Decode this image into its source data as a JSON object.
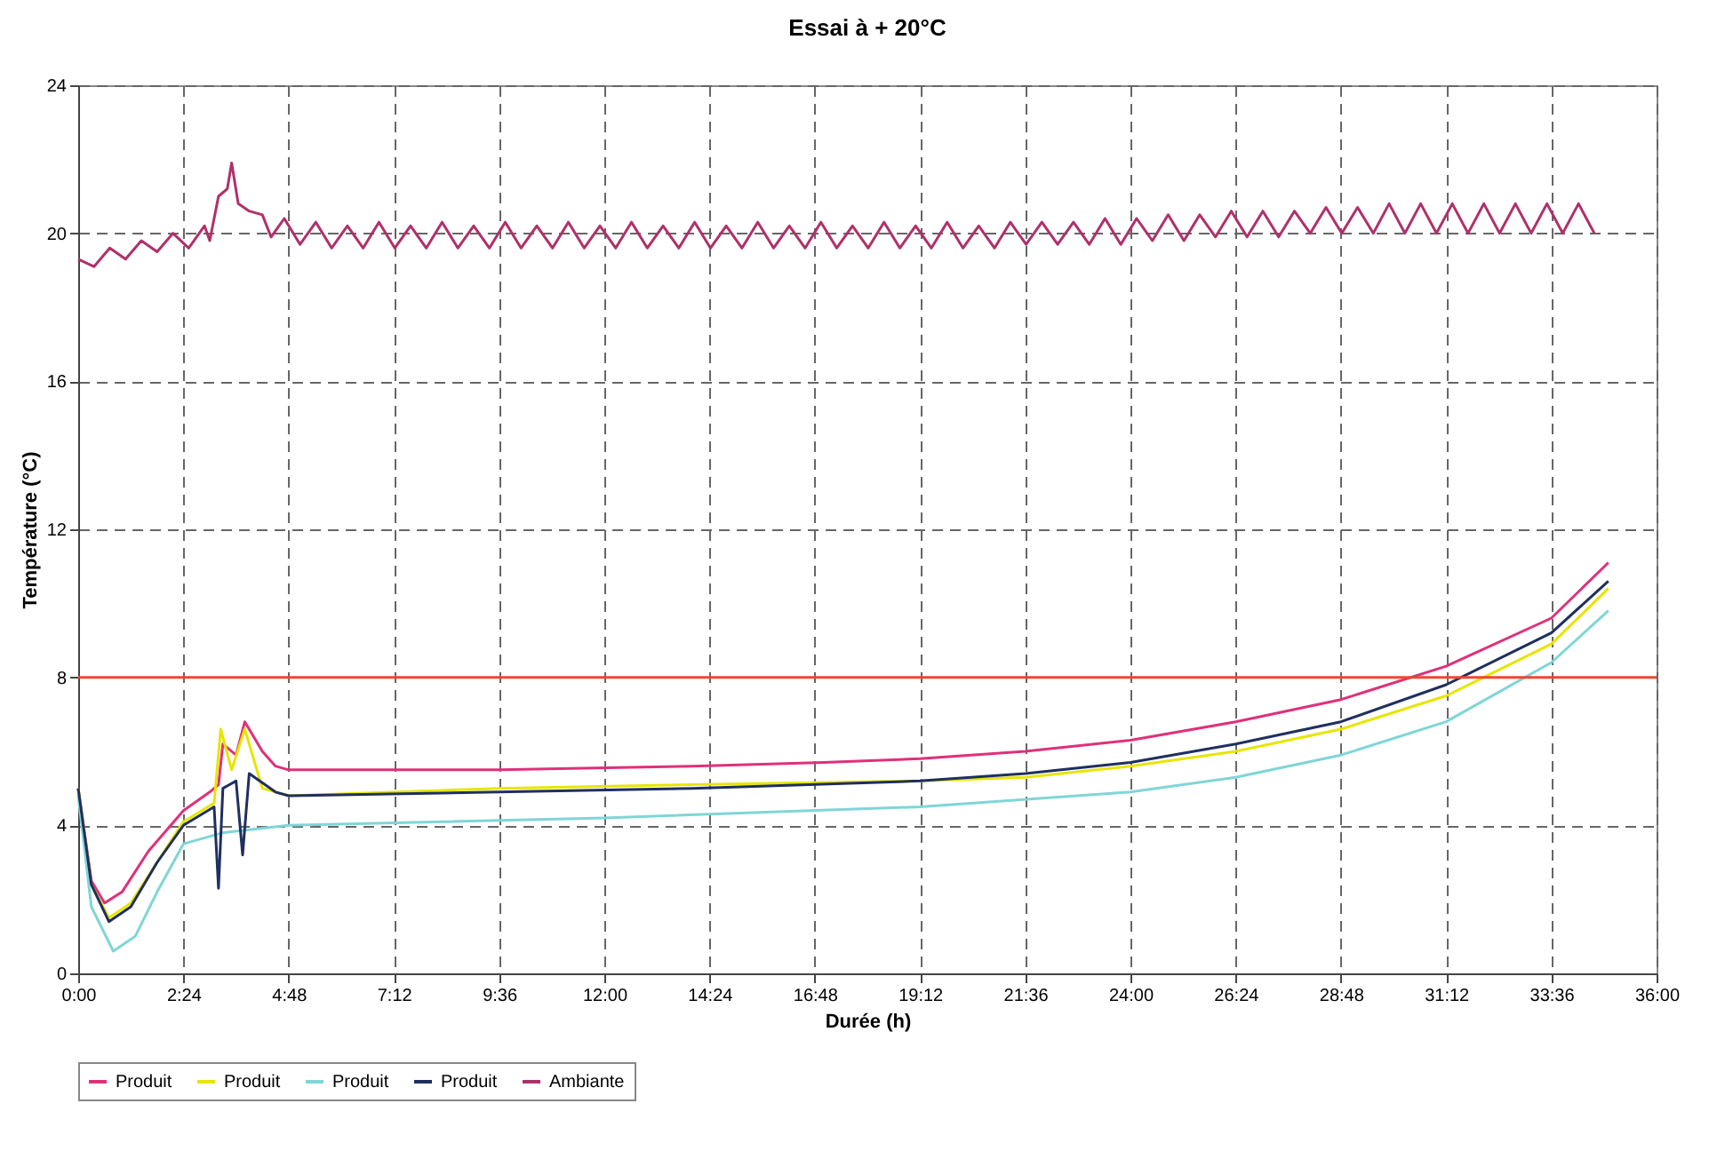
{
  "chart_data": {
    "type": "line",
    "title": "Essai à + 20°C",
    "xlabel": "Durée (h)",
    "ylabel": "Température (°C)",
    "xlim": [
      0,
      36
    ],
    "ylim": [
      0,
      24
    ],
    "xticks": [
      {
        "value": 0,
        "label": "0:00"
      },
      {
        "value": 2.4,
        "label": "2:24"
      },
      {
        "value": 4.8,
        "label": "4:48"
      },
      {
        "value": 7.2,
        "label": "7:12"
      },
      {
        "value": 9.6,
        "label": "9:36"
      },
      {
        "value": 12,
        "label": "12:00"
      },
      {
        "value": 14.4,
        "label": "14:24"
      },
      {
        "value": 16.8,
        "label": "16:48"
      },
      {
        "value": 19.2,
        "label": "19:12"
      },
      {
        "value": 21.6,
        "label": "21:36"
      },
      {
        "value": 24,
        "label": "24:00"
      },
      {
        "value": 26.4,
        "label": "26:24"
      },
      {
        "value": 28.8,
        "label": "28:48"
      },
      {
        "value": 31.2,
        "label": "31:12"
      },
      {
        "value": 33.6,
        "label": "33:36"
      },
      {
        "value": 36,
        "label": "36:00"
      }
    ],
    "yticks": [
      0,
      4,
      8,
      12,
      16,
      20,
      24
    ],
    "grid": true,
    "legend": "bottom",
    "line_style": "solid",
    "ref_lines": [
      {
        "axis": "y",
        "value": 8,
        "color": "#e84a30"
      }
    ],
    "series": [
      {
        "name": "Produit",
        "color": "#e0307a",
        "x": [
          0,
          0.3,
          0.6,
          1.0,
          1.6,
          2.4,
          3.0,
          3.2,
          3.3,
          3.6,
          3.8,
          4.2,
          4.5,
          4.8,
          9.6,
          14,
          17,
          19.2,
          21.6,
          24,
          26.4,
          28.8,
          31.2,
          33.6,
          34.9
        ],
        "values": [
          5.0,
          2.5,
          1.9,
          2.2,
          3.3,
          4.4,
          4.9,
          5.1,
          6.2,
          5.9,
          6.8,
          6.0,
          5.6,
          5.5,
          5.5,
          5.6,
          5.7,
          5.8,
          6.0,
          6.3,
          6.8,
          7.4,
          8.3,
          9.6,
          11.1
        ]
      },
      {
        "name": "Produit",
        "color": "#e6e600",
        "x": [
          0,
          0.3,
          0.7,
          1.2,
          1.8,
          2.4,
          3.1,
          3.25,
          3.5,
          3.8,
          4.2,
          4.8,
          9.6,
          14,
          19.2,
          21.6,
          24,
          26.4,
          28.8,
          31.2,
          33.6,
          34.9
        ],
        "values": [
          5.0,
          2.4,
          1.5,
          1.9,
          3.0,
          4.1,
          4.6,
          6.6,
          5.5,
          6.6,
          5.0,
          4.8,
          5.0,
          5.1,
          5.2,
          5.3,
          5.6,
          6.0,
          6.6,
          7.5,
          8.9,
          10.4
        ]
      },
      {
        "name": "Produit",
        "color": "#7fd6d6",
        "x": [
          0,
          0.3,
          0.8,
          1.3,
          1.8,
          2.4,
          3.3,
          4.8,
          12,
          19.2,
          24,
          26.4,
          28.8,
          31.2,
          33.6,
          34.9
        ],
        "values": [
          4.8,
          1.8,
          0.6,
          1.0,
          2.2,
          3.5,
          3.8,
          4.0,
          4.2,
          4.5,
          4.9,
          5.3,
          5.9,
          6.8,
          8.4,
          9.8
        ]
      },
      {
        "name": "Produit",
        "color": "#1f2f5f",
        "x": [
          0,
          0.3,
          0.7,
          1.2,
          1.8,
          2.4,
          3.1,
          3.2,
          3.3,
          3.6,
          3.75,
          3.9,
          4.5,
          4.8,
          9.6,
          14,
          19.2,
          21.6,
          24,
          26.4,
          28.8,
          31.2,
          33.6,
          34.9
        ],
        "values": [
          5.0,
          2.4,
          1.4,
          1.8,
          3.0,
          4.0,
          4.5,
          2.3,
          5.0,
          5.2,
          3.2,
          5.4,
          4.9,
          4.8,
          4.9,
          5.0,
          5.2,
          5.4,
          5.7,
          6.2,
          6.8,
          7.8,
          9.2,
          10.6
        ]
      },
      {
        "name": "Ambiante",
        "color": "#b0306a",
        "x": [
          0,
          0.36,
          0.72,
          1.08,
          1.44,
          1.8,
          2.16,
          2.52,
          2.88,
          3.0,
          3.2,
          3.4,
          3.5,
          3.65,
          3.9,
          4.2,
          4.4,
          4.7,
          5.06,
          5.42,
          5.78,
          6.14,
          6.5,
          6.86,
          7.22,
          7.58,
          7.94,
          8.3,
          8.66,
          9.02,
          9.38,
          9.74,
          10.1,
          10.46,
          10.82,
          11.18,
          11.54,
          11.9,
          12.26,
          12.62,
          12.98,
          13.34,
          13.7,
          14.06,
          14.42,
          14.78,
          15.14,
          15.5,
          15.86,
          16.22,
          16.58,
          16.94,
          17.3,
          17.66,
          18.02,
          18.38,
          18.74,
          19.1,
          19.46,
          19.82,
          20.18,
          20.54,
          20.9,
          21.26,
          21.62,
          21.98,
          22.34,
          22.7,
          23.06,
          23.42,
          23.78,
          24.14,
          24.5,
          24.86,
          25.22,
          25.58,
          25.94,
          26.3,
          26.66,
          27.02,
          27.38,
          27.74,
          28.1,
          28.46,
          28.82,
          29.18,
          29.54,
          29.9,
          30.26,
          30.62,
          30.98,
          31.34,
          31.7,
          32.06,
          32.42,
          32.78,
          33.14,
          33.5,
          33.86,
          34.22,
          34.58
        ],
        "values": [
          19.3,
          19.1,
          19.6,
          19.3,
          19.8,
          19.5,
          20.0,
          19.6,
          20.2,
          19.8,
          21.0,
          21.2,
          21.9,
          20.8,
          20.6,
          20.5,
          19.9,
          20.4,
          19.7,
          20.3,
          19.6,
          20.2,
          19.6,
          20.3,
          19.6,
          20.2,
          19.6,
          20.3,
          19.6,
          20.2,
          19.6,
          20.3,
          19.6,
          20.2,
          19.6,
          20.3,
          19.6,
          20.2,
          19.6,
          20.3,
          19.6,
          20.2,
          19.6,
          20.3,
          19.6,
          20.2,
          19.6,
          20.3,
          19.6,
          20.2,
          19.6,
          20.3,
          19.6,
          20.2,
          19.6,
          20.3,
          19.6,
          20.2,
          19.6,
          20.3,
          19.6,
          20.2,
          19.6,
          20.3,
          19.7,
          20.3,
          19.7,
          20.3,
          19.7,
          20.4,
          19.7,
          20.4,
          19.8,
          20.5,
          19.8,
          20.5,
          19.9,
          20.6,
          19.9,
          20.6,
          19.9,
          20.6,
          20.0,
          20.7,
          20.0,
          20.7,
          20.0,
          20.8,
          20.0,
          20.8,
          20.0,
          20.8,
          20.0,
          20.8,
          20.0,
          20.8,
          20.0,
          20.8,
          20.0,
          20.8,
          20.0
        ]
      }
    ]
  }
}
